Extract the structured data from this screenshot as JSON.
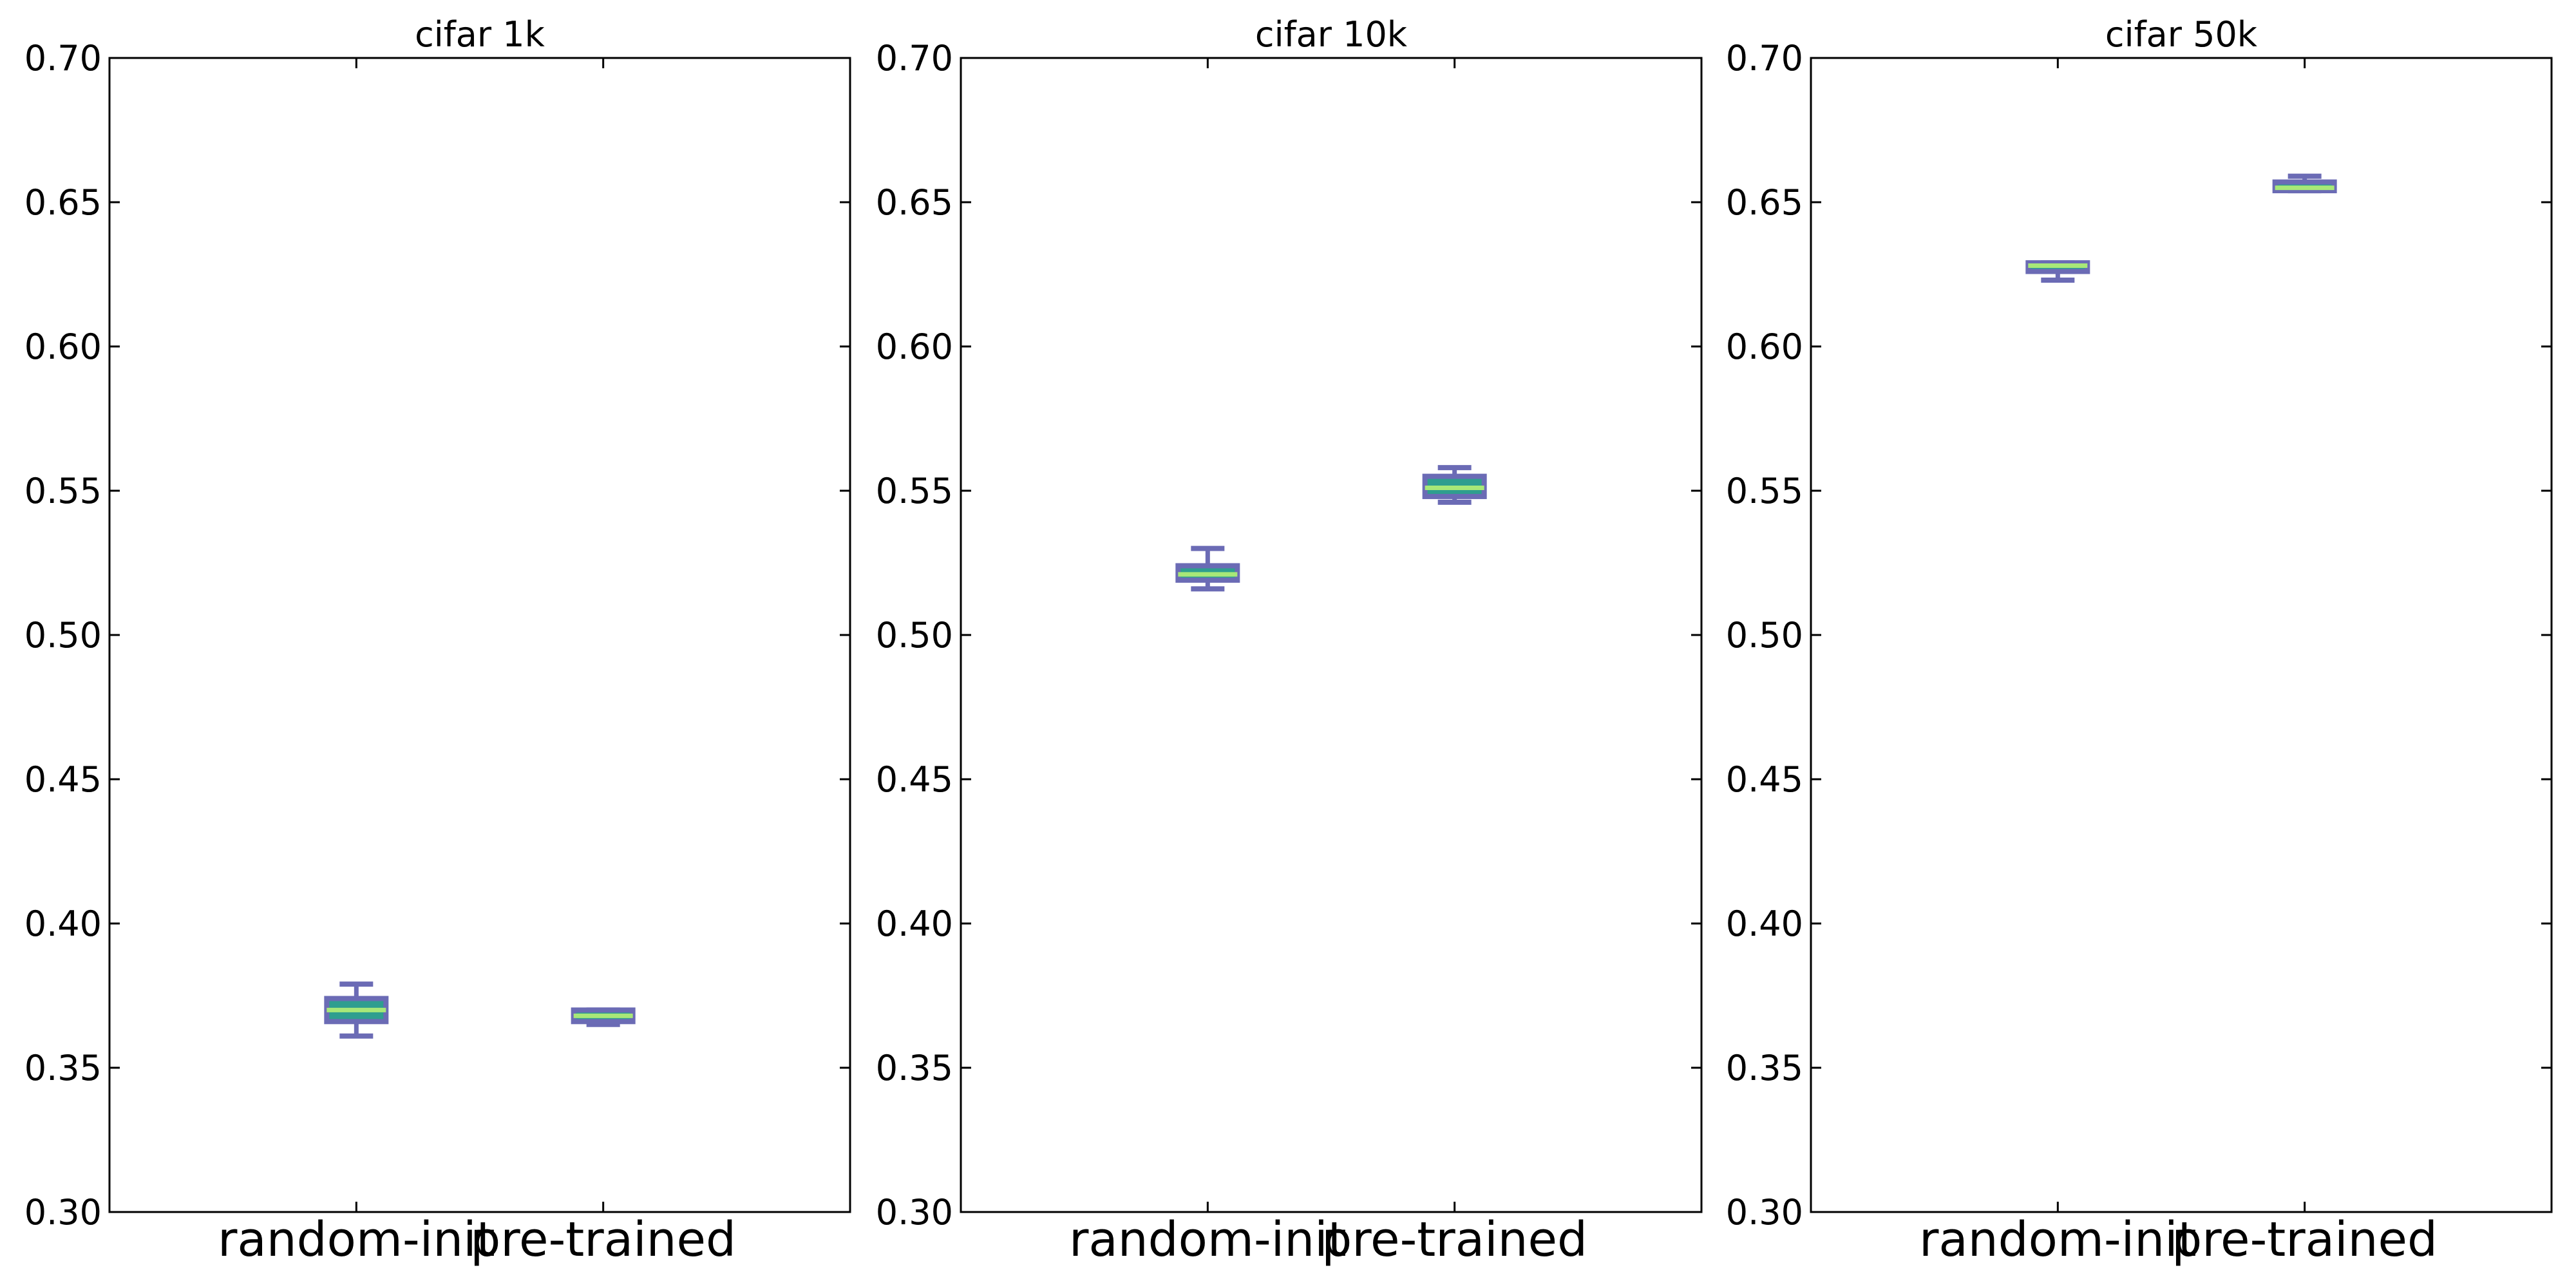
{
  "chart_data": [
    {
      "type": "box",
      "title": "cifar 1k",
      "categories": [
        "random-init",
        "pre-trained"
      ],
      "ylim": [
        0.3,
        0.7
      ],
      "yticks": [
        "0.30",
        "0.35",
        "0.40",
        "0.45",
        "0.50",
        "0.55",
        "0.60",
        "0.65",
        "0.70"
      ],
      "grid": false,
      "boxes": [
        {
          "category": "random-init",
          "whisker_low": 0.361,
          "q1": 0.366,
          "median": 0.37,
          "q3": 0.374,
          "whisker_high": 0.379
        },
        {
          "category": "pre-trained",
          "whisker_low": 0.365,
          "q1": 0.366,
          "median": 0.368,
          "q3": 0.37,
          "whisker_high": 0.37
        }
      ]
    },
    {
      "type": "box",
      "title": "cifar 10k",
      "categories": [
        "random-init",
        "pre-trained"
      ],
      "ylim": [
        0.3,
        0.7
      ],
      "yticks": [
        "0.30",
        "0.35",
        "0.40",
        "0.45",
        "0.50",
        "0.55",
        "0.60",
        "0.65",
        "0.70"
      ],
      "grid": false,
      "boxes": [
        {
          "category": "random-init",
          "whisker_low": 0.516,
          "q1": 0.519,
          "median": 0.521,
          "q3": 0.524,
          "whisker_high": 0.53
        },
        {
          "category": "pre-trained",
          "whisker_low": 0.546,
          "q1": 0.548,
          "median": 0.551,
          "q3": 0.555,
          "whisker_high": 0.558
        }
      ]
    },
    {
      "type": "box",
      "title": "cifar 50k",
      "categories": [
        "random-init",
        "pre-trained"
      ],
      "ylim": [
        0.3,
        0.7
      ],
      "yticks": [
        "0.30",
        "0.35",
        "0.40",
        "0.45",
        "0.50",
        "0.55",
        "0.60",
        "0.65",
        "0.70"
      ],
      "grid": false,
      "boxes": [
        {
          "category": "random-init",
          "whisker_low": 0.623,
          "q1": 0.626,
          "median": 0.628,
          "q3": 0.629,
          "whisker_high": 0.629
        },
        {
          "category": "pre-trained",
          "whisker_low": 0.654,
          "q1": 0.654,
          "median": 0.655,
          "q3": 0.657,
          "whisker_high": 0.659
        }
      ]
    }
  ],
  "colors": {
    "box_fill": "#2f9e8f",
    "box_edge": "#6b6bb5",
    "median": "#a8e878",
    "whisker": "#6b6bb5",
    "axis": "#000000"
  }
}
